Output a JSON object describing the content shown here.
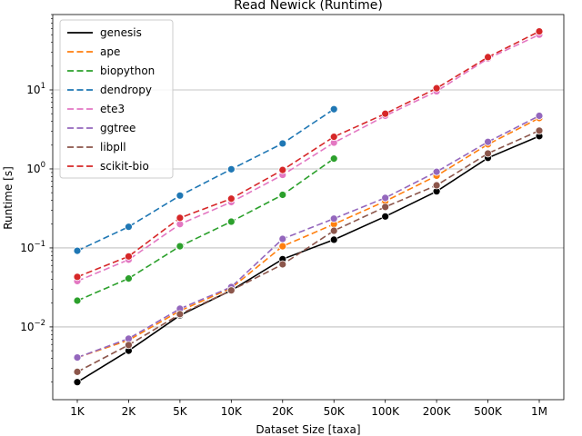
{
  "chart_data": {
    "type": "line",
    "title": "Read Newick  (Runtime)",
    "xlabel": "Dataset Size  [taxa]",
    "ylabel": "Runtime  [s]",
    "categories": [
      "1K",
      "2K",
      "5K",
      "10K",
      "20K",
      "50K",
      "100K",
      "200K",
      "500K",
      "1M"
    ],
    "yscale": "log",
    "ylim": [
      0.0012,
      90
    ],
    "yticks": [
      {
        "value": 0.01,
        "base": "10",
        "exp": "−2"
      },
      {
        "value": 0.1,
        "base": "10",
        "exp": "−1"
      },
      {
        "value": 1,
        "base": "10",
        "exp": "0"
      },
      {
        "value": 10,
        "base": "10",
        "exp": "1"
      }
    ],
    "grid": "y-major",
    "legend": "top-left",
    "series": [
      {
        "name": "genesis",
        "color": "#000000",
        "dash": "solid",
        "values": [
          0.002,
          0.005,
          0.014,
          0.029,
          0.072,
          0.127,
          0.25,
          0.52,
          1.38,
          2.6
        ]
      },
      {
        "name": "ape",
        "color": "#ff7f0e",
        "dash": "dashed",
        "values": [
          0.0041,
          0.0068,
          0.016,
          0.031,
          0.105,
          0.2,
          0.39,
          0.82,
          2.05,
          4.4
        ]
      },
      {
        "name": "biopython",
        "color": "#2ca02c",
        "dash": "dashed",
        "values": [
          0.0215,
          0.041,
          0.105,
          0.215,
          0.47,
          1.35,
          null,
          null,
          null,
          null
        ]
      },
      {
        "name": "dendropy",
        "color": "#1f77b4",
        "dash": "dashed",
        "values": [
          0.092,
          0.185,
          0.46,
          0.99,
          2.1,
          5.7,
          null,
          null,
          null,
          null
        ]
      },
      {
        "name": "ete3",
        "color": "#e377c2",
        "dash": "dashed",
        "values": [
          0.038,
          0.071,
          0.2,
          0.38,
          0.84,
          2.15,
          4.7,
          9.6,
          25,
          50
        ]
      },
      {
        "name": "ggtree",
        "color": "#9467bd",
        "dash": "dashed",
        "values": [
          0.0041,
          0.0071,
          0.017,
          0.032,
          0.13,
          0.235,
          0.43,
          0.92,
          2.2,
          4.7
        ]
      },
      {
        "name": "libpll",
        "color": "#8c564b",
        "dash": "dashed",
        "values": [
          0.0027,
          0.0059,
          0.0145,
          0.029,
          0.062,
          0.165,
          0.33,
          0.62,
          1.57,
          3.05
        ]
      },
      {
        "name": "scikit-bio",
        "color": "#d62728",
        "dash": "dashed",
        "values": [
          0.043,
          0.078,
          0.24,
          0.42,
          0.97,
          2.55,
          5.0,
          10.5,
          26,
          55
        ]
      }
    ]
  }
}
